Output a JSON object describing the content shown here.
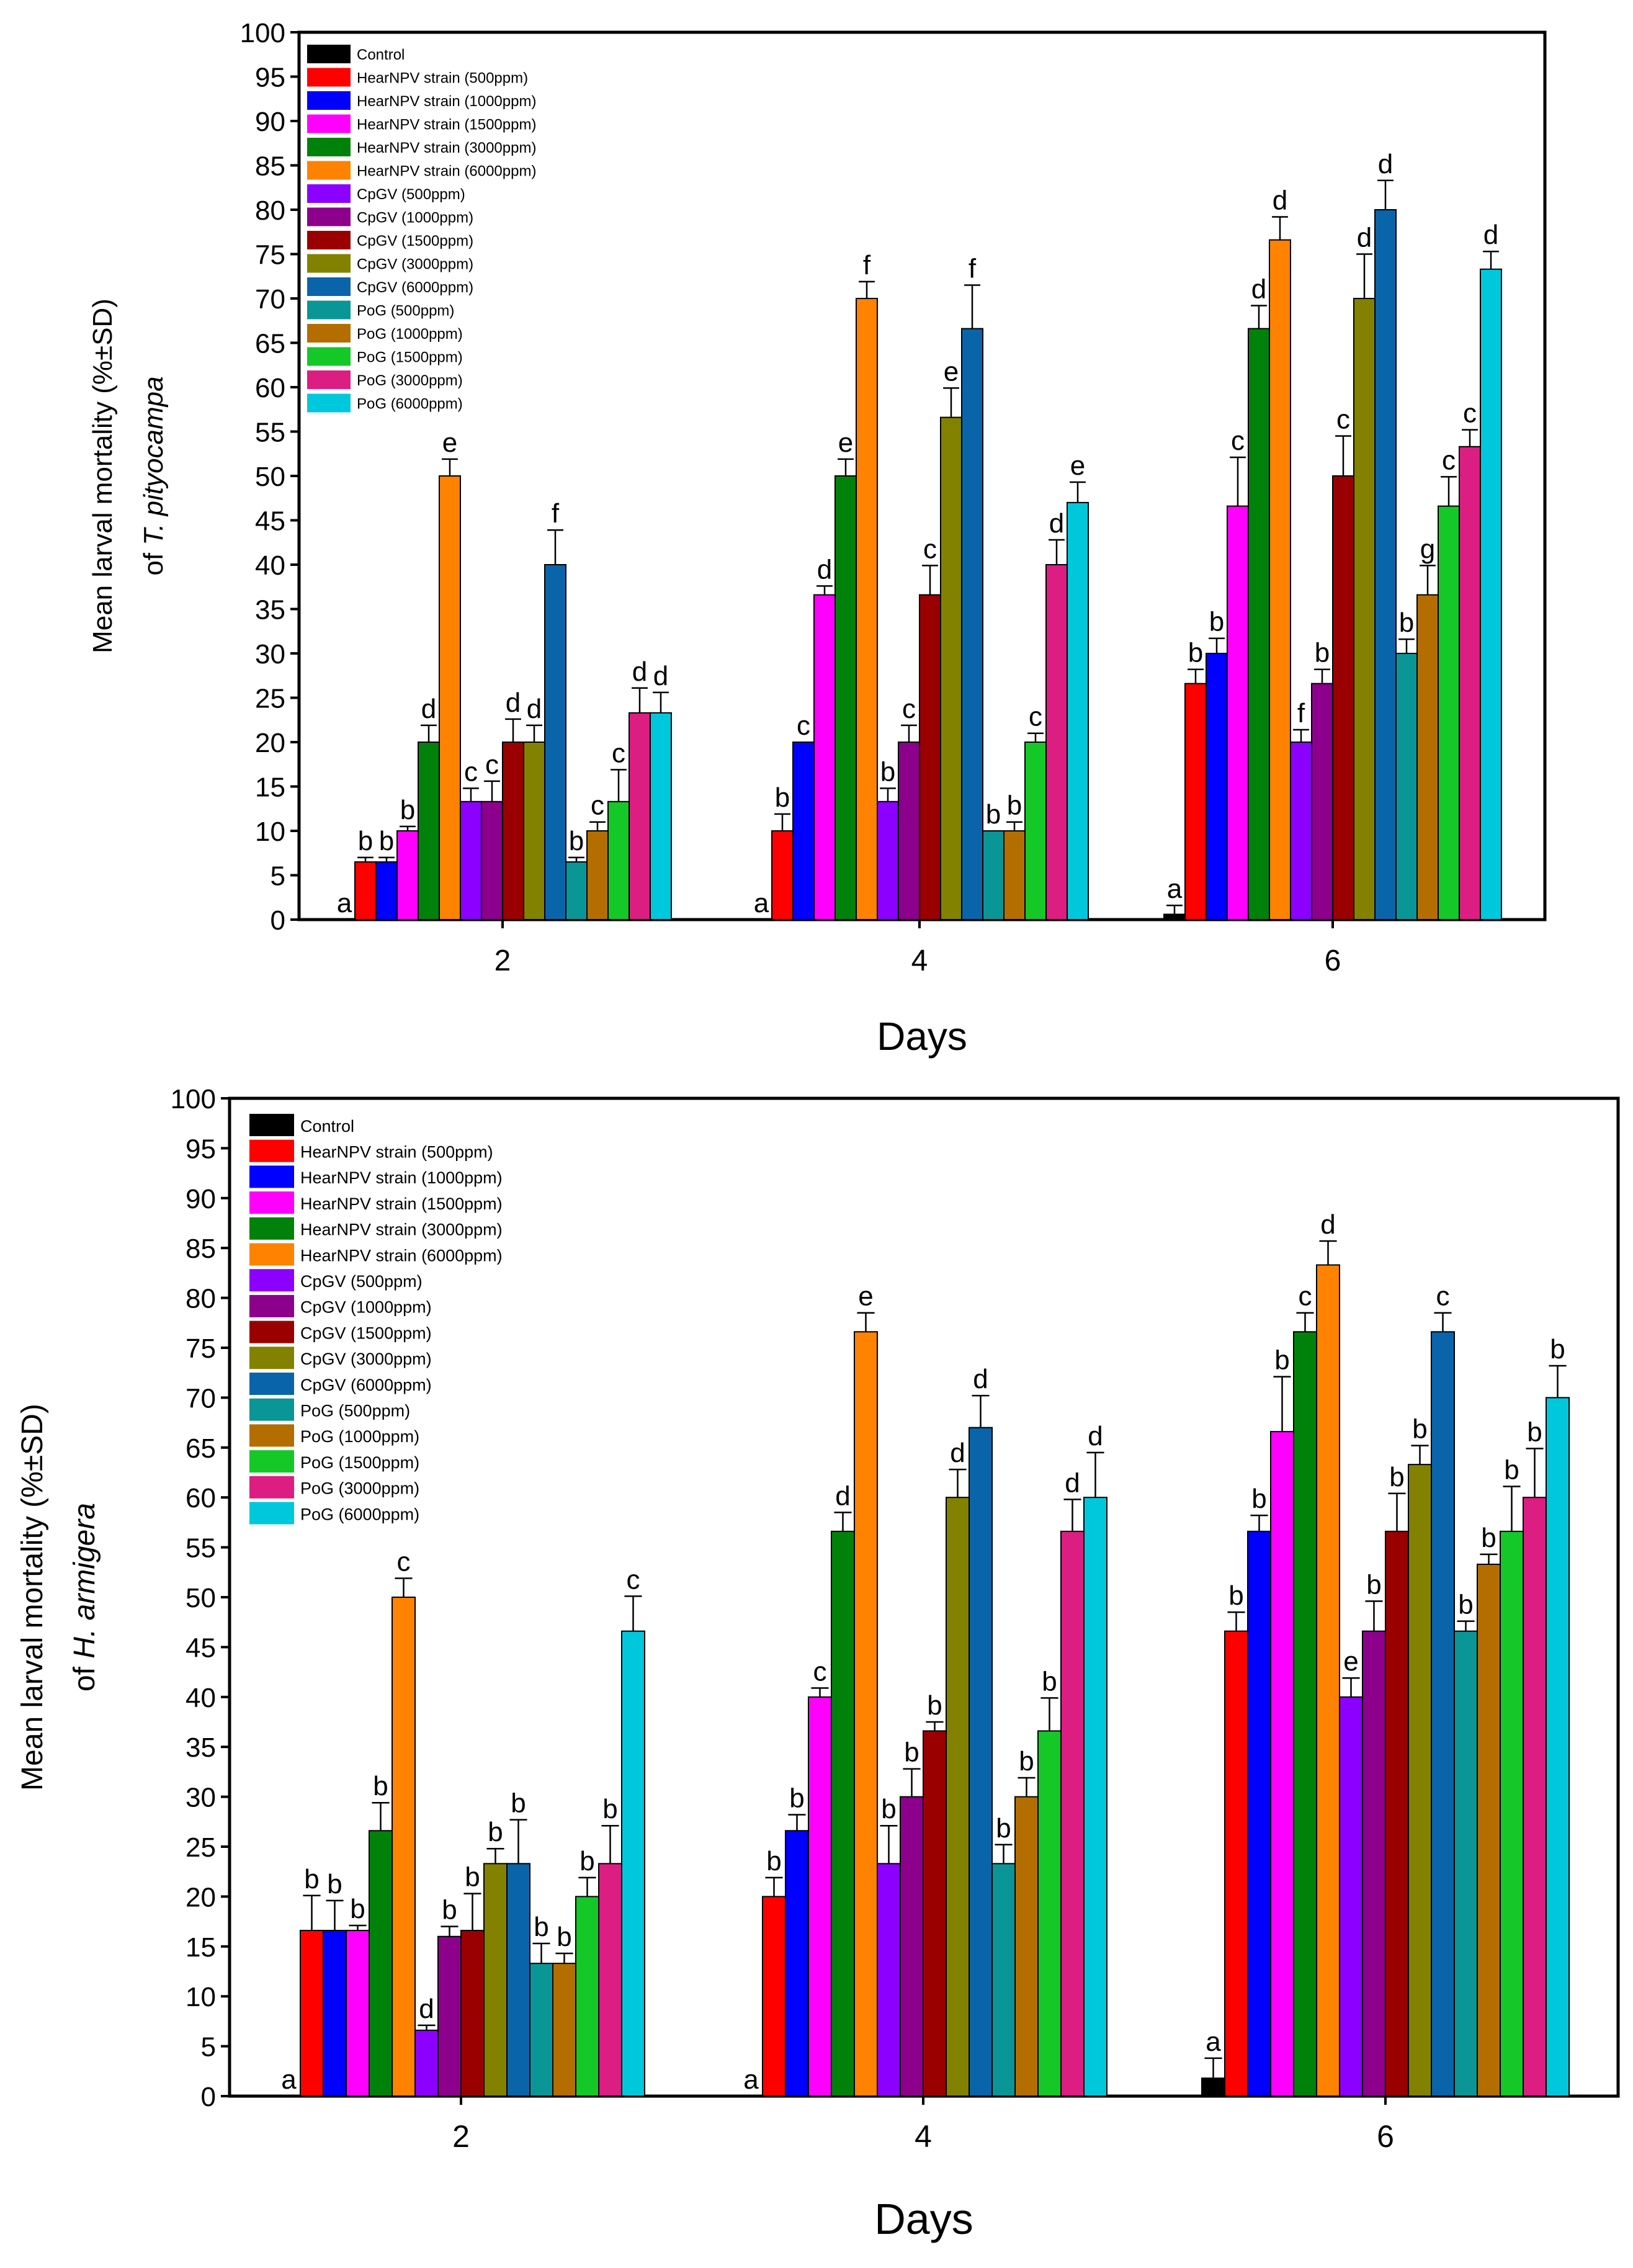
{
  "figure": {
    "series_names": [
      "Control",
      "HearNPV strain  (500ppm)",
      "HearNPV strain  (1000ppm)",
      "HearNPV strain  (1500ppm)",
      "HearNPV strain  (3000ppm)",
      "HearNPV strain  (6000ppm)",
      "CpGV (500ppm)",
      "CpGV (1000ppm)",
      "CpGV (1500ppm)",
      "CpGV (3000ppm)",
      "CpGV (6000ppm)",
      "PoG (500ppm)",
      "PoG (1000ppm)",
      "PoG (1500ppm)",
      "PoG (3000ppm)",
      "PoG (6000ppm)"
    ],
    "series_colors": [
      "#000000",
      "#ff0000",
      "#0000ff",
      "#ff00ff",
      "#00820a",
      "#ff8200",
      "#8c00ff",
      "#8c008c",
      "#9a0000",
      "#828200",
      "#0a64aa",
      "#0a9696",
      "#b46e00",
      "#14c828",
      "#dc1e82",
      "#00c8dc"
    ]
  },
  "chart_data": [
    {
      "id": "top",
      "type": "bar",
      "xlabel": "Days",
      "ylabel": "Mean larval mortality (%±SD)",
      "ylabel_line2_prefix": "of ",
      "ylabel_line2_italic": "T. pityocampa",
      "ylim": [
        0,
        100
      ],
      "yticks": [
        "0",
        "5",
        "10",
        "15",
        "20",
        "25",
        "30",
        "35",
        "40",
        "45",
        "50",
        "55",
        "60",
        "65",
        "70",
        "75",
        "80",
        "85",
        "90",
        "95",
        "100"
      ],
      "categories": [
        "2",
        "4",
        "6"
      ],
      "legend_position": "top-left",
      "series": [
        {
          "name": "Control",
          "values": [
            0,
            0,
            0.6
          ],
          "errors": [
            0,
            0,
            1.0
          ],
          "letters": [
            "a",
            "a",
            "a"
          ]
        },
        {
          "name": "HearNPV strain  (500ppm)",
          "values": [
            6.5,
            10,
            26.6
          ],
          "errors": [
            0.5,
            1.9,
            1.6
          ],
          "letters": [
            "b",
            "b",
            "b"
          ]
        },
        {
          "name": "HearNPV strain  (1000ppm)",
          "values": [
            6.5,
            20,
            30
          ],
          "errors": [
            0.5,
            0,
            1.7
          ],
          "letters": [
            "b",
            "c",
            "b"
          ]
        },
        {
          "name": "HearNPV strain  (1500ppm)",
          "values": [
            10,
            36.6,
            46.6
          ],
          "errors": [
            0.5,
            1.0,
            5.5
          ],
          "letters": [
            "b",
            "d",
            "c"
          ]
        },
        {
          "name": "HearNPV strain  (3000ppm)",
          "values": [
            20,
            50,
            66.6
          ],
          "errors": [
            1.9,
            1.9,
            2.6
          ],
          "letters": [
            "d",
            "e",
            "d"
          ]
        },
        {
          "name": "HearNPV strain  (6000ppm)",
          "values": [
            50,
            70,
            76.6
          ],
          "errors": [
            1.9,
            1.9,
            2.6
          ],
          "letters": [
            "e",
            "f",
            "d"
          ]
        },
        {
          "name": "CpGV (500ppm)",
          "values": [
            13.3,
            13.3,
            20
          ],
          "errors": [
            1.5,
            1.5,
            1.4
          ],
          "letters": [
            "c",
            "b",
            "f"
          ]
        },
        {
          "name": "CpGV (1000ppm)",
          "values": [
            13.3,
            20,
            26.6
          ],
          "errors": [
            2.3,
            1.9,
            1.6
          ],
          "letters": [
            "c",
            "c",
            "b"
          ]
        },
        {
          "name": "CpGV (1500ppm)",
          "values": [
            20,
            36.6,
            50
          ],
          "errors": [
            2.6,
            3.3,
            4.5
          ],
          "letters": [
            "d",
            "c",
            "c"
          ]
        },
        {
          "name": "CpGV (3000ppm)",
          "values": [
            20,
            56.6,
            70
          ],
          "errors": [
            1.9,
            3.3,
            5.0
          ],
          "letters": [
            "d",
            "e",
            "d"
          ]
        },
        {
          "name": "CpGV (6000ppm)",
          "values": [
            40,
            66.6,
            80
          ],
          "errors": [
            3.9,
            4.9,
            3.3
          ],
          "letters": [
            "f",
            "f",
            "d"
          ]
        },
        {
          "name": "PoG (500ppm)",
          "values": [
            6.5,
            10,
            30
          ],
          "errors": [
            0.5,
            0,
            1.6
          ],
          "letters": [
            "b",
            "b",
            "b"
          ]
        },
        {
          "name": "PoG (1000ppm)",
          "values": [
            10,
            10,
            36.6
          ],
          "errors": [
            1.0,
            1.0,
            3.3
          ],
          "letters": [
            "c",
            "b",
            "g"
          ]
        },
        {
          "name": "PoG (1500ppm)",
          "values": [
            13.3,
            20,
            46.6
          ],
          "errors": [
            3.6,
            1.0,
            3.3
          ],
          "letters": [
            "c",
            "c",
            "c"
          ]
        },
        {
          "name": "PoG (3000ppm)",
          "values": [
            23.3,
            40,
            53.3
          ],
          "errors": [
            2.8,
            2.8,
            1.9
          ],
          "letters": [
            "d",
            "d",
            "c"
          ]
        },
        {
          "name": "PoG (6000ppm)",
          "values": [
            23.3,
            47,
            73.3
          ],
          "errors": [
            2.3,
            2.3,
            2.0
          ],
          "letters": [
            "d",
            "e",
            "d"
          ]
        }
      ]
    },
    {
      "id": "bottom",
      "type": "bar",
      "xlabel": "Days",
      "ylabel": "Mean larval mortality (%±SD)",
      "ylabel_line2_prefix": "of ",
      "ylabel_line2_italic": "H. armigera",
      "ylim": [
        0,
        100
      ],
      "yticks": [
        "0",
        "5",
        "10",
        "15",
        "20",
        "25",
        "30",
        "35",
        "40",
        "45",
        "50",
        "55",
        "60",
        "65",
        "70",
        "75",
        "80",
        "85",
        "90",
        "95",
        "100"
      ],
      "categories": [
        "2",
        "4",
        "6"
      ],
      "legend_position": "top-left",
      "series": [
        {
          "name": "Control",
          "values": [
            0,
            0,
            1.8
          ],
          "errors": [
            0,
            0,
            2.0
          ],
          "letters": [
            "a",
            "a",
            "a"
          ]
        },
        {
          "name": "HearNPV strain  (500ppm)",
          "values": [
            16.6,
            20,
            46.6
          ],
          "errors": [
            3.5,
            1.9,
            1.9
          ],
          "letters": [
            "b",
            "b",
            "b"
          ]
        },
        {
          "name": "HearNPV strain  (1000ppm)",
          "values": [
            16.6,
            26.6,
            56.6
          ],
          "errors": [
            3.0,
            1.6,
            1.6
          ],
          "letters": [
            "b",
            "b",
            "b"
          ]
        },
        {
          "name": "HearNPV strain  (1500ppm)",
          "values": [
            16.6,
            40,
            66.6
          ],
          "errors": [
            0.5,
            0.9,
            5.5
          ],
          "letters": [
            "b",
            "c",
            "b"
          ]
        },
        {
          "name": "HearNPV strain  (3000ppm)",
          "values": [
            26.6,
            56.6,
            76.6
          ],
          "errors": [
            2.8,
            1.9,
            1.9
          ],
          "letters": [
            "b",
            "d",
            "c"
          ]
        },
        {
          "name": "HearNPV strain  (6000ppm)",
          "values": [
            50,
            76.6,
            83.3
          ],
          "errors": [
            1.9,
            1.9,
            2.4
          ],
          "letters": [
            "c",
            "e",
            "d"
          ]
        },
        {
          "name": "CpGV (500ppm)",
          "values": [
            6.6,
            23.3,
            40
          ],
          "errors": [
            0.5,
            3.8,
            1.9
          ],
          "letters": [
            "d",
            "b",
            "e"
          ]
        },
        {
          "name": "CpGV (1000ppm)",
          "values": [
            16,
            30,
            46.6
          ],
          "errors": [
            1.0,
            2.8,
            3.0
          ],
          "letters": [
            "b",
            "b",
            "b"
          ]
        },
        {
          "name": "CpGV (1500ppm)",
          "values": [
            16.6,
            36.6,
            56.6
          ],
          "errors": [
            3.7,
            0.9,
            3.8
          ],
          "letters": [
            "b",
            "b",
            "b"
          ]
        },
        {
          "name": "CpGV (3000ppm)",
          "values": [
            23.3,
            60,
            63.3
          ],
          "errors": [
            1.5,
            2.8,
            1.9
          ],
          "letters": [
            "b",
            "d",
            "b"
          ]
        },
        {
          "name": "CpGV (6000ppm)",
          "values": [
            23.3,
            67,
            76.6
          ],
          "errors": [
            4.4,
            3.2,
            1.9
          ],
          "letters": [
            "b",
            "d",
            "c"
          ]
        },
        {
          "name": "PoG (500ppm)",
          "values": [
            13.3,
            23.3,
            46.6
          ],
          "errors": [
            2.0,
            1.9,
            1.0
          ],
          "letters": [
            "b",
            "b",
            "b"
          ]
        },
        {
          "name": "PoG (1000ppm)",
          "values": [
            13.3,
            30,
            53.3
          ],
          "errors": [
            1.0,
            1.9,
            1.0
          ],
          "letters": [
            "b",
            "b",
            "b"
          ]
        },
        {
          "name": "PoG (1500ppm)",
          "values": [
            20,
            36.6,
            56.6
          ],
          "errors": [
            1.9,
            3.3,
            4.5
          ],
          "letters": [
            "b",
            "b",
            "b"
          ]
        },
        {
          "name": "PoG (3000ppm)",
          "values": [
            23.3,
            56.6,
            60
          ],
          "errors": [
            3.8,
            3.2,
            4.9
          ],
          "letters": [
            "b",
            "d",
            "b"
          ]
        },
        {
          "name": "PoG (6000ppm)",
          "values": [
            46.6,
            60,
            70
          ],
          "errors": [
            3.5,
            4.5,
            3.2
          ],
          "letters": [
            "c",
            "d",
            "b"
          ]
        }
      ]
    }
  ]
}
